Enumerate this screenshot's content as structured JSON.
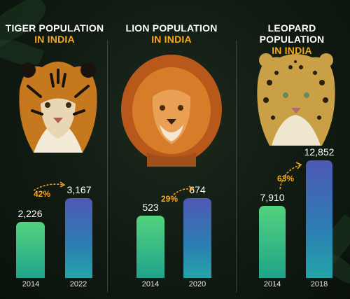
{
  "colors": {
    "accent": "#f6a81f",
    "bar_old": "#3cc484",
    "bar_new": "#3a64b2",
    "background": "#101a12"
  },
  "chart_data": [
    {
      "type": "bar",
      "title": "TIGER POPULATION",
      "subtitle": "IN INDIA",
      "categories": [
        "2014",
        "2022"
      ],
      "values": [
        2226,
        3167
      ],
      "value_labels": [
        "2,226",
        "3,167"
      ],
      "change_label": "42%",
      "ylim": [
        0,
        13500
      ]
    },
    {
      "type": "bar",
      "title": "LION POPULATION",
      "subtitle": "IN INDIA",
      "categories": [
        "2014",
        "2020"
      ],
      "values": [
        523,
        674
      ],
      "value_labels": [
        "523",
        "674"
      ],
      "change_label": "29%",
      "ylim": [
        0,
        13500
      ]
    },
    {
      "type": "bar",
      "title": "LEOPARD POPULATION",
      "subtitle": "IN INDIA",
      "categories": [
        "2014",
        "2018"
      ],
      "values": [
        7910,
        12852
      ],
      "value_labels": [
        "7,910",
        "12,852"
      ],
      "change_label": "63%",
      "ylim": [
        0,
        13500
      ]
    }
  ]
}
